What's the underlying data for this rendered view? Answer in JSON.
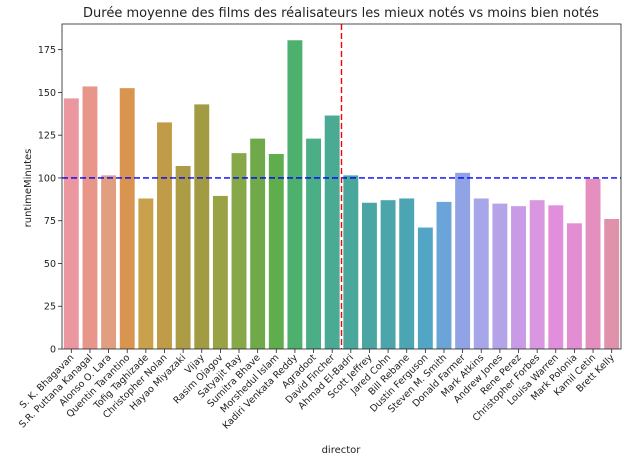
{
  "chart_data": {
    "type": "bar",
    "title": "Durée moyenne des films des réalisateurs les mieux notés vs moins bien notés",
    "xlabel": "director",
    "ylabel": "runtimeMinutes",
    "ylim": [
      0,
      190
    ],
    "yticks": [
      0,
      25,
      50,
      75,
      100,
      125,
      150,
      175
    ],
    "grid": false,
    "categories": [
      "S. K. Bhagavan",
      "S.R. Puttana Kanagal",
      "Alonso O. Lara",
      "Quentin Tarantino",
      "Tofig Taghizade",
      "Christopher Nolan",
      "Hayao Miyazaki",
      "Vijay",
      "Rasim Ojagov",
      "Satyajit Ray",
      "Sumitra Bhave",
      "Morshedul Islam",
      "Kadiri Venkata Reddy",
      "Agradoot",
      "David Fincher",
      "Ahmad El-Badri",
      "Scott Jeffrey",
      "Jared Cohn",
      "Bill Rebane",
      "Dustin Ferguson",
      "Steven M. Smith",
      "Donald Farmer",
      "Mark Atkins",
      "Andrew Jones",
      "Rene Perez",
      "Christopher Forbes",
      "Louisa Warren",
      "Mark Polonia",
      "Kamil Cetin",
      "Brett Kelly"
    ],
    "values": [
      146.5,
      153.5,
      101.5,
      152.5,
      88,
      132.5,
      107,
      143,
      89.5,
      114.5,
      123,
      114,
      180.5,
      123,
      136.5,
      101.5,
      85.5,
      87,
      88,
      71,
      86,
      103,
      88,
      85,
      83.5,
      87,
      84,
      73.5,
      99.5,
      76
    ],
    "colors": [
      "#ea97a0",
      "#e8958a",
      "#e29e80",
      "#d99550",
      "#c9a14c",
      "#c19c48",
      "#ac9c45",
      "#a39b44",
      "#99a245",
      "#86a848",
      "#70a94a",
      "#60ad4d",
      "#4db06c",
      "#4bae87",
      "#4aaa93",
      "#4aa79c",
      "#4ba6a3",
      "#4ca5aa",
      "#4ca5b2",
      "#53a5c6",
      "#6aa4d9",
      "#90a4e5",
      "#a6a6e8",
      "#b5a3e8",
      "#c99be6",
      "#d997e2",
      "#e18fdc",
      "#e38ed3",
      "#e58fbf",
      "#e092ab"
    ],
    "reference_lines": [
      {
        "orientation": "horizontal",
        "value": 100,
        "color": "#0000ff",
        "style": "dashed"
      },
      {
        "orientation": "vertical",
        "between_categories": [
          "David Fincher",
          "Ahmad El-Badri"
        ],
        "color": "#ff0000",
        "style": "dashed"
      }
    ]
  }
}
